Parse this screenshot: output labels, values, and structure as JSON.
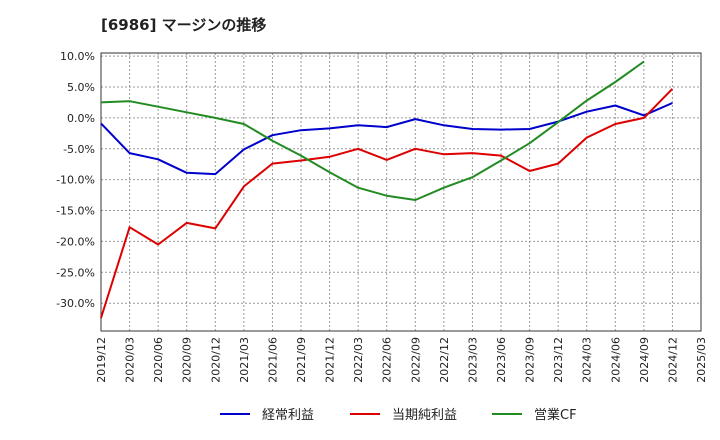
{
  "chart_data": {
    "type": "line",
    "title": "[6986]  マージンの推移",
    "xlabel": "",
    "ylabel": "",
    "categories": [
      "2019/12",
      "2020/03",
      "2020/06",
      "2020/09",
      "2020/12",
      "2021/03",
      "2021/06",
      "2021/09",
      "2021/12",
      "2022/03",
      "2022/06",
      "2022/09",
      "2022/12",
      "2023/03",
      "2023/06",
      "2023/09",
      "2023/12",
      "2024/03",
      "2024/06",
      "2024/09",
      "2024/12",
      "2025/03"
    ],
    "ylim": [
      -34.5,
      10.5
    ],
    "yticks": [
      10,
      5,
      0,
      -5,
      -10,
      -15,
      -20,
      -25,
      -30
    ],
    "ytick_labels": [
      "10.0%",
      "5.0%",
      "0.0%",
      "-5.0%",
      "-10.0%",
      "-15.0%",
      "-20.0%",
      "-25.0%",
      "-30.0%"
    ],
    "grid": true,
    "legend_position": "bottom",
    "series": [
      {
        "name": "経常利益",
        "color": "#0000cc",
        "values": [
          -0.9,
          -5.7,
          -6.7,
          -8.9,
          -9.1,
          -5.1,
          -2.8,
          -2.0,
          -1.7,
          -1.2,
          -1.5,
          -0.2,
          -1.2,
          -1.8,
          -1.9,
          -1.8,
          -0.6,
          1.0,
          2.0,
          0.4,
          2.4,
          null
        ]
      },
      {
        "name": "当期純利益",
        "color": "#dd0000",
        "values": [
          -32.4,
          -17.7,
          -20.5,
          -17.0,
          -17.9,
          -11.1,
          -7.4,
          -6.9,
          -6.3,
          -5.0,
          -6.8,
          -5.0,
          -5.9,
          -5.7,
          -6.1,
          -8.6,
          -7.4,
          -3.2,
          -1.0,
          0.0,
          4.7,
          null
        ]
      },
      {
        "name": "営業CF",
        "color": "#228b22",
        "values": [
          2.5,
          2.7,
          1.8,
          0.9,
          0.0,
          -1.0,
          -3.7,
          -6.1,
          -8.8,
          -11.3,
          -12.6,
          -13.3,
          -11.3,
          -9.6,
          -6.9,
          -4.1,
          -0.7,
          2.8,
          5.8,
          9.1,
          null,
          null
        ]
      }
    ]
  }
}
